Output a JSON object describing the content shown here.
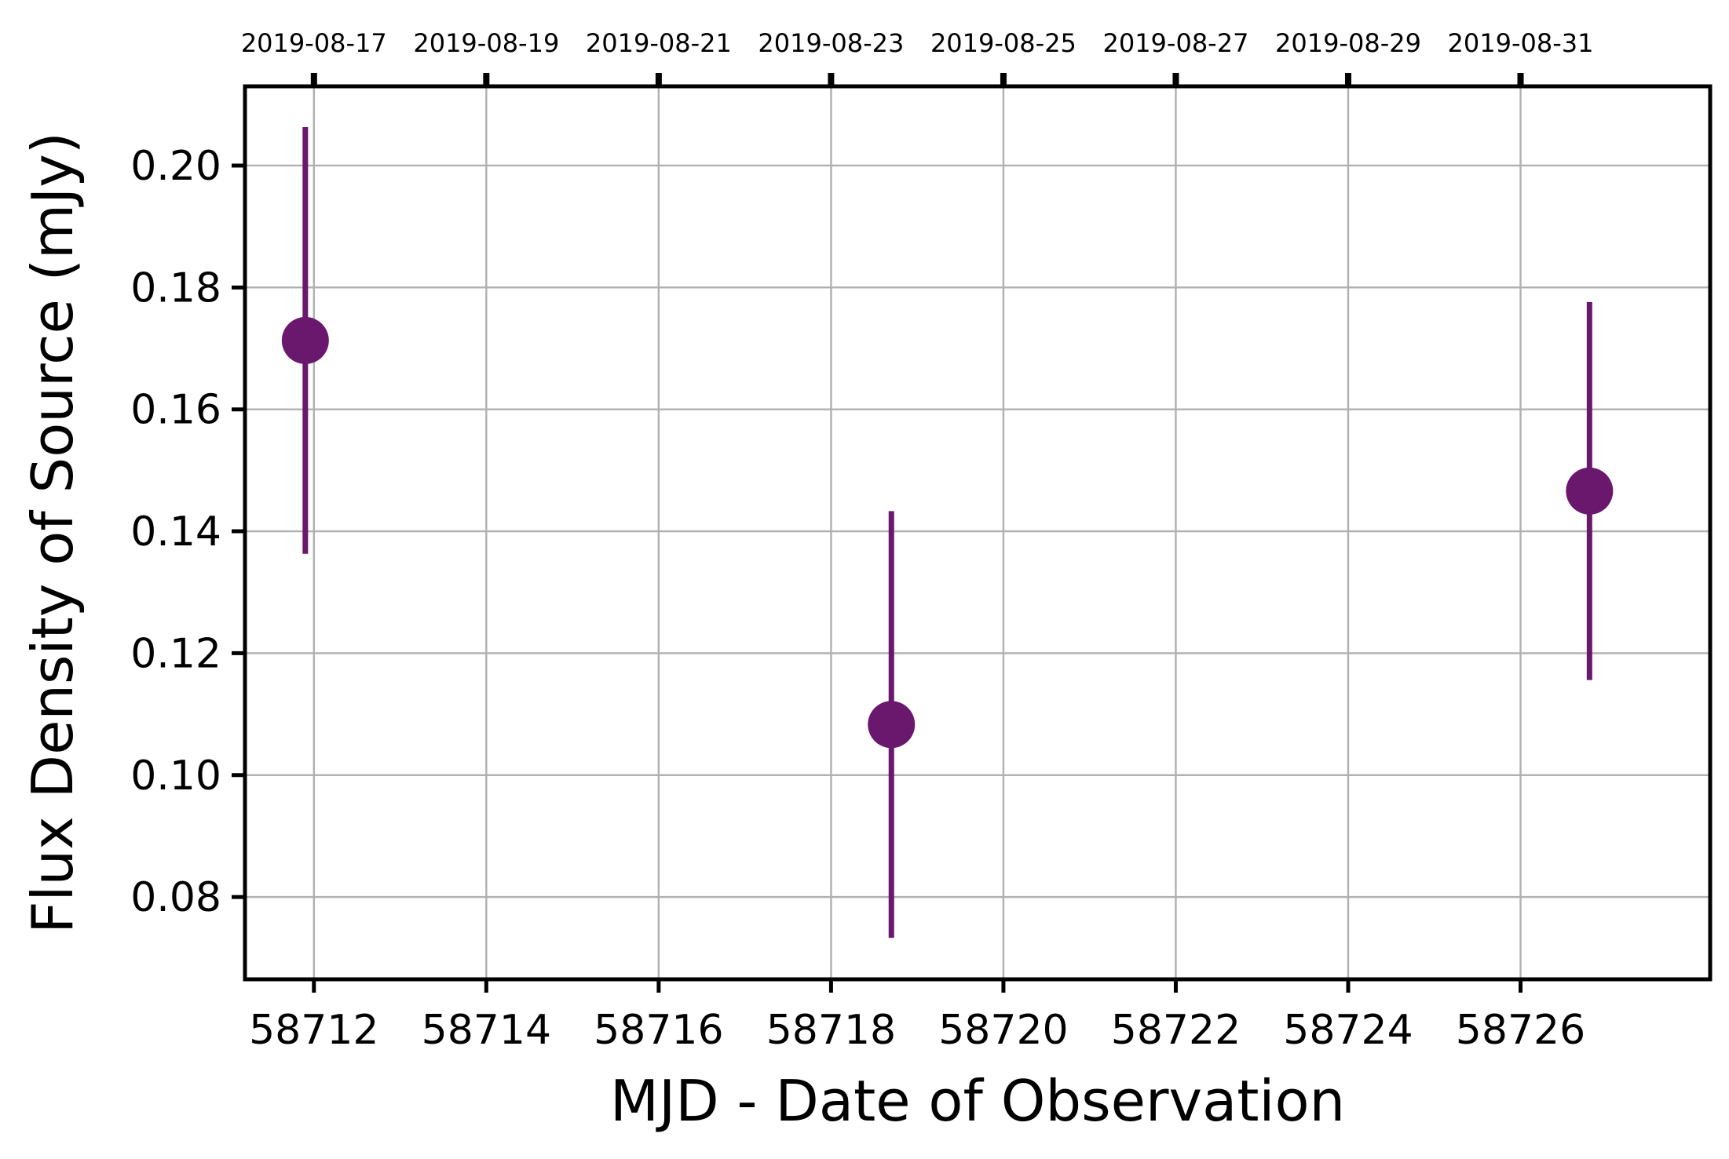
{
  "chart_data": {
    "type": "scatter",
    "title": "",
    "xlabel": "MJD - Date of Observation",
    "ylabel": "Flux Density of Source (mJy)",
    "xlim": [
      58711.2,
      58728.2
    ],
    "ylim": [
      0.0665,
      0.213
    ],
    "grid": true,
    "marker_color": "#6a176e",
    "x_ticks": [
      58712,
      58714,
      58716,
      58718,
      58720,
      58722,
      58724,
      58726
    ],
    "y_ticks": [
      0.08,
      0.1,
      0.12,
      0.14,
      0.16,
      0.18,
      0.2
    ],
    "y_tick_labels": [
      "0.08",
      "0.10",
      "0.12",
      "0.14",
      "0.16",
      "0.18",
      "0.20"
    ],
    "top_axis_labels": [
      "2019-08-17",
      "2019-08-19",
      "2019-08-21",
      "2019-08-23",
      "2019-08-25",
      "2019-08-27",
      "2019-08-29",
      "2019-08-31"
    ],
    "points": [
      {
        "x": 58711.9,
        "y": 0.1713,
        "err": 0.035
      },
      {
        "x": 58718.7,
        "y": 0.1083,
        "err": 0.035
      },
      {
        "x": 58726.8,
        "y": 0.1466,
        "err": 0.031
      }
    ]
  }
}
